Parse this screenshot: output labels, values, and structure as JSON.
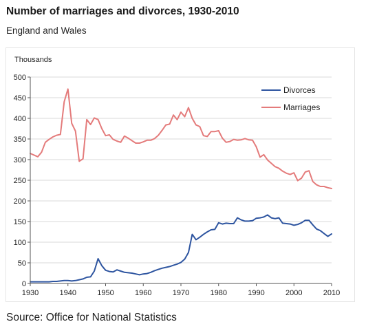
{
  "title": "Number of marriages and divorces, 1930-2010",
  "subtitle": "England and Wales",
  "source": "Source: Office for National Statistics",
  "colors": {
    "divorces": "#2e55a0",
    "marriages": "#e47b7b",
    "axis": "#555555",
    "gridline": "#d9d9d9"
  },
  "chart_data": {
    "type": "line",
    "ylabel": "Thousands",
    "xlim": [
      1930,
      2010
    ],
    "ylim": [
      0,
      500
    ],
    "x_ticks": [
      1930,
      1940,
      1950,
      1960,
      1970,
      1980,
      1990,
      2000,
      2010
    ],
    "y_ticks": [
      0,
      50,
      100,
      150,
      200,
      250,
      300,
      350,
      400,
      450,
      500
    ],
    "grid": "horizontal",
    "legend_position": "top-right",
    "x": [
      1930,
      1931,
      1932,
      1933,
      1934,
      1935,
      1936,
      1937,
      1938,
      1939,
      1940,
      1941,
      1942,
      1943,
      1944,
      1945,
      1946,
      1947,
      1948,
      1949,
      1950,
      1951,
      1952,
      1953,
      1954,
      1955,
      1956,
      1957,
      1958,
      1959,
      1960,
      1961,
      1962,
      1963,
      1964,
      1965,
      1966,
      1967,
      1968,
      1969,
      1970,
      1971,
      1972,
      1973,
      1974,
      1975,
      1976,
      1977,
      1978,
      1979,
      1980,
      1981,
      1982,
      1983,
      1984,
      1985,
      1986,
      1987,
      1988,
      1989,
      1990,
      1991,
      1992,
      1993,
      1994,
      1995,
      1996,
      1997,
      1998,
      1999,
      2000,
      2001,
      2002,
      2003,
      2004,
      2005,
      2006,
      2007,
      2008,
      2009,
      2010
    ],
    "series": [
      {
        "name": "Divorces",
        "values": [
          4,
          4,
          4,
          4,
          4,
          4,
          5,
          5,
          6,
          7,
          7,
          6,
          7,
          9,
          11,
          15,
          16,
          30,
          60,
          43,
          32,
          29,
          28,
          33,
          30,
          27,
          26,
          25,
          23,
          21,
          23,
          24,
          27,
          31,
          34,
          37,
          39,
          41,
          44,
          47,
          51,
          59,
          75,
          119,
          106,
          112,
          119,
          125,
          130,
          131,
          147,
          144,
          146,
          145,
          145,
          159,
          154,
          151,
          151,
          152,
          158,
          159,
          161,
          166,
          159,
          157,
          159,
          146,
          145,
          144,
          141,
          143,
          147,
          153,
          153,
          142,
          132,
          128,
          121,
          114,
          120
        ]
      },
      {
        "name": "Marriages",
        "values": [
          315,
          311,
          307,
          318,
          342,
          349,
          355,
          359,
          361,
          440,
          471,
          388,
          369,
          296,
          302,
          397,
          385,
          401,
          397,
          375,
          358,
          360,
          349,
          345,
          342,
          357,
          352,
          346,
          340,
          340,
          343,
          347,
          347,
          351,
          359,
          371,
          384,
          386,
          408,
          397,
          415,
          404,
          426,
          400,
          384,
          380,
          358,
          356,
          368,
          368,
          370,
          352,
          342,
          344,
          349,
          347,
          348,
          351,
          348,
          347,
          331,
          306,
          312,
          299,
          291,
          283,
          279,
          272,
          267,
          264,
          268,
          249,
          255,
          270,
          273,
          247,
          239,
          235,
          235,
          232,
          230
        ]
      }
    ]
  }
}
